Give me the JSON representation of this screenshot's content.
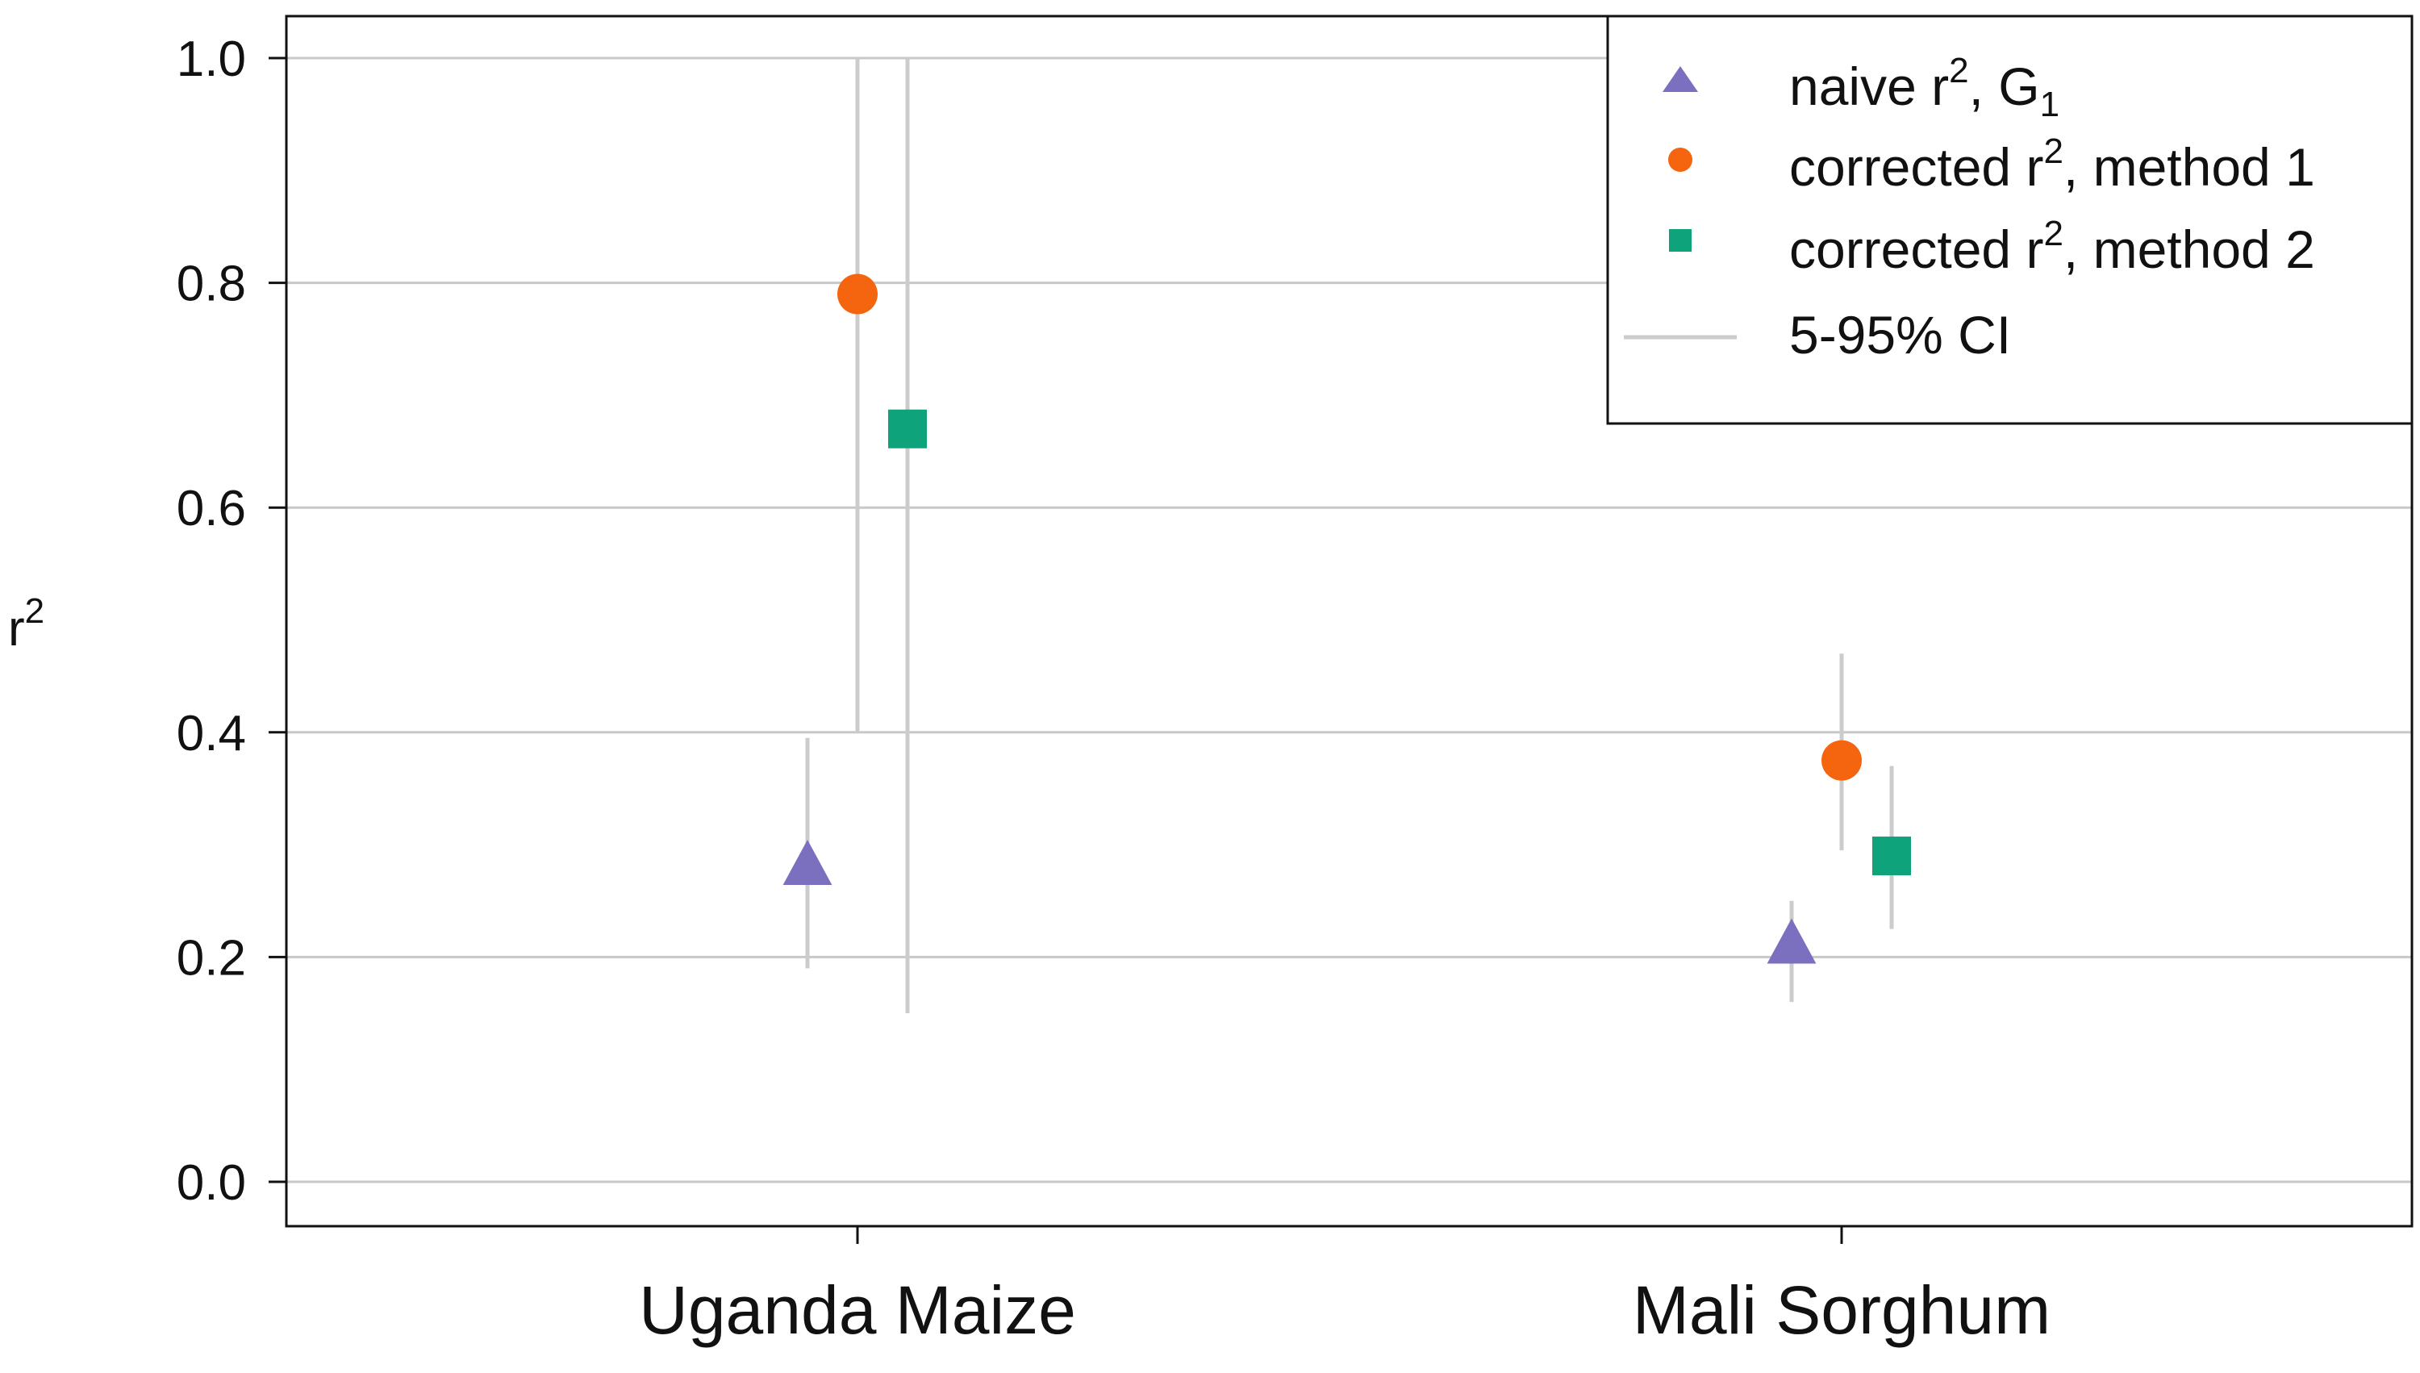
{
  "chart_data": {
    "type": "scatter",
    "title": "",
    "xlabel": "",
    "ylabel": {
      "base": "r",
      "sup": "2"
    },
    "categories": [
      "Uganda Maize",
      "Mali Sorghum"
    ],
    "ylim": [
      -0.04,
      1.04
    ],
    "yticks": [
      "0.0",
      "0.2",
      "0.4",
      "0.6",
      "0.8",
      "1.0"
    ],
    "grid": true,
    "legend_position": "top-right",
    "series": [
      {
        "name": "naive r2, G1",
        "legend": {
          "pre": "naive r",
          "sup": "2",
          "mid": ", G",
          "sub": "1",
          "post": ""
        },
        "marker": "triangle",
        "color": "#7b6fbf",
        "values": [
          0.28,
          0.21
        ],
        "ci_low": [
          0.19,
          0.16
        ],
        "ci_high": [
          0.395,
          0.25
        ]
      },
      {
        "name": "corrected r2, method 1",
        "legend": {
          "pre": "corrected r",
          "sup": "2",
          "mid": ", method 1",
          "sub": "",
          "post": ""
        },
        "marker": "circle",
        "color": "#f5650f",
        "values": [
          0.79,
          0.375
        ],
        "ci_low": [
          0.4,
          0.295
        ],
        "ci_high": [
          1.0,
          0.47
        ]
      },
      {
        "name": "corrected r2, method 2",
        "legend": {
          "pre": "corrected r",
          "sup": "2",
          "mid": ", method 2",
          "sub": "",
          "post": ""
        },
        "marker": "square",
        "color": "#0ea37a",
        "values": [
          0.67,
          0.29
        ],
        "ci_low": [
          0.15,
          0.225
        ],
        "ci_high": [
          1.0,
          0.37
        ]
      }
    ],
    "ci_legend_label": "5-95% CI",
    "ci_color": "#cccccc",
    "grid_color": "#c8c8c8",
    "axis_color": "#111111"
  }
}
